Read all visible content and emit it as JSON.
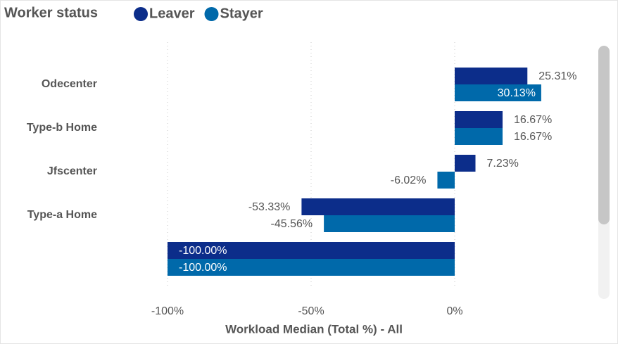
{
  "chart_data": {
    "type": "bar",
    "orientation": "horizontal",
    "legend_title": "Worker status",
    "x_label": "Workload Median (Total %) - All",
    "categories": [
      "Odecenter",
      "Type-b Home",
      "Jfscenter",
      "Type-a Home",
      null
    ],
    "series": [
      {
        "name": "Leaver",
        "color": "#0c2d8a",
        "values": [
          25.31,
          16.67,
          7.23,
          -53.33,
          -100
        ],
        "value_labels": [
          "25.31%",
          "16.67%",
          "7.23%",
          "-53.33%",
          "-100.00%"
        ]
      },
      {
        "name": "Stayer",
        "color": "#0069aa",
        "values": [
          30.13,
          16.67,
          -6.02,
          -45.56,
          -100
        ],
        "value_labels": [
          "30.13%",
          "16.67%",
          "-6.02%",
          "-45.56%",
          "-100.00%"
        ]
      }
    ],
    "xlim": [
      -100,
      50
    ],
    "xticks": [
      {
        "value": -100,
        "label": "-100%"
      },
      {
        "value": -50,
        "label": "-50%"
      },
      {
        "value": 0,
        "label": "0%"
      }
    ],
    "grid": true
  }
}
